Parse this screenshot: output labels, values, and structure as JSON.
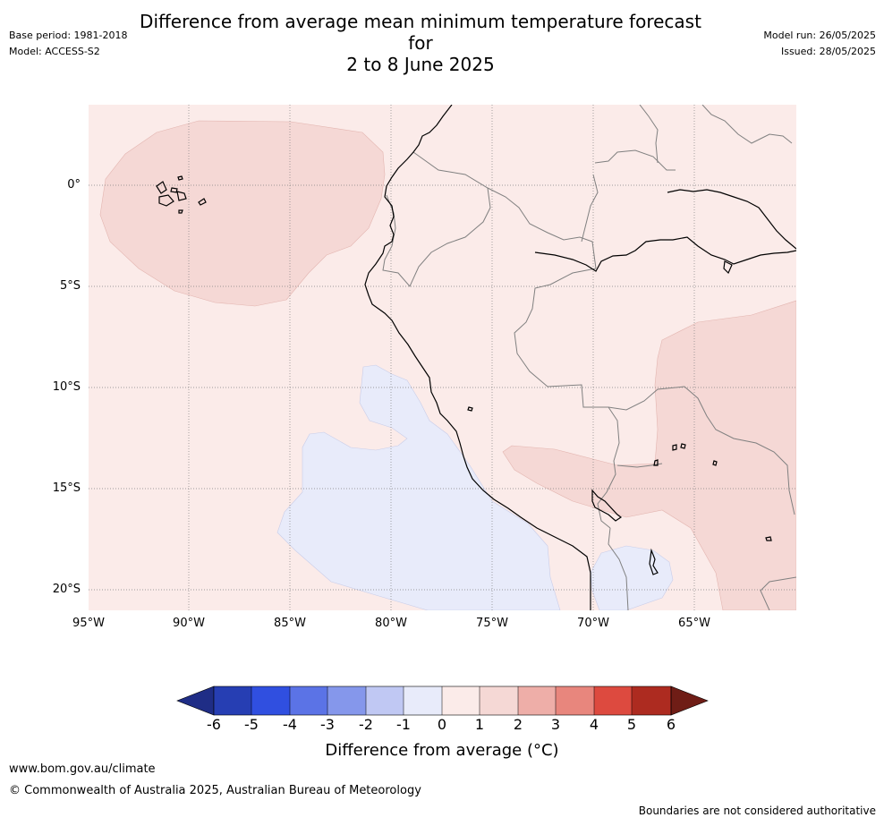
{
  "header": {
    "title_line1": "Difference from average mean minimum temperature forecast for",
    "title_line2": "2 to 8 June 2025",
    "base_period": "Base period: 1981-2018",
    "model": "Model: ACCESS-S2",
    "model_run": "Model run: 26/05/2025",
    "issued": "Issued: 28/05/2025"
  },
  "map": {
    "lat_labels": [
      "0°",
      "5°S",
      "10°S",
      "15°S",
      "20°S"
    ],
    "lon_labels": [
      "95°W",
      "90°W",
      "85°W",
      "80°W",
      "75°W",
      "70°W",
      "65°W"
    ],
    "fill_colors": {
      "near_zero_warm": "#fbebe9",
      "warm_1_2": "#f5d8d5",
      "cool_0_-1": "#e8ebfa",
      "coastline": "#000000",
      "border": "#808080"
    }
  },
  "colorbar": {
    "ticks": [
      "-6",
      "-5",
      "-4",
      "-3",
      "-2",
      "-1",
      "0",
      "1",
      "2",
      "3",
      "4",
      "5",
      "6"
    ],
    "colors": [
      "#1f2d86",
      "#263eb3",
      "#304fe0",
      "#5b73e6",
      "#8597eb",
      "#c0c8f3",
      "#e8ebfa",
      "#fbebe9",
      "#f5d8d5",
      "#eeaea8",
      "#e8867d",
      "#dd4a3f",
      "#ad2b20",
      "#6f1d16"
    ],
    "label": "Difference from average (°C)"
  },
  "footer": {
    "url": "www.bom.gov.au/climate",
    "copyright": "© Commonwealth of Australia 2025, Australian Bureau of Meteorology",
    "disclaimer": "Boundaries are not considered authoritative"
  }
}
